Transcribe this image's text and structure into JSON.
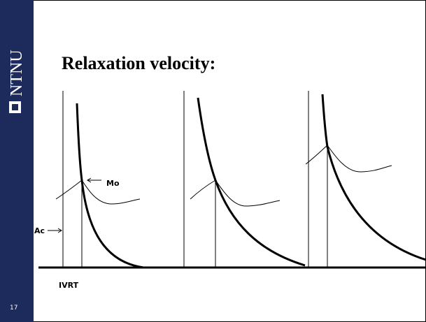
{
  "sidebar": {
    "logo": "NTNU",
    "page_number": "17"
  },
  "title": "Relaxation velocity:",
  "labels": {
    "mo": "Mo",
    "ac": "Ac",
    "ivrt": "IVRT"
  }
}
